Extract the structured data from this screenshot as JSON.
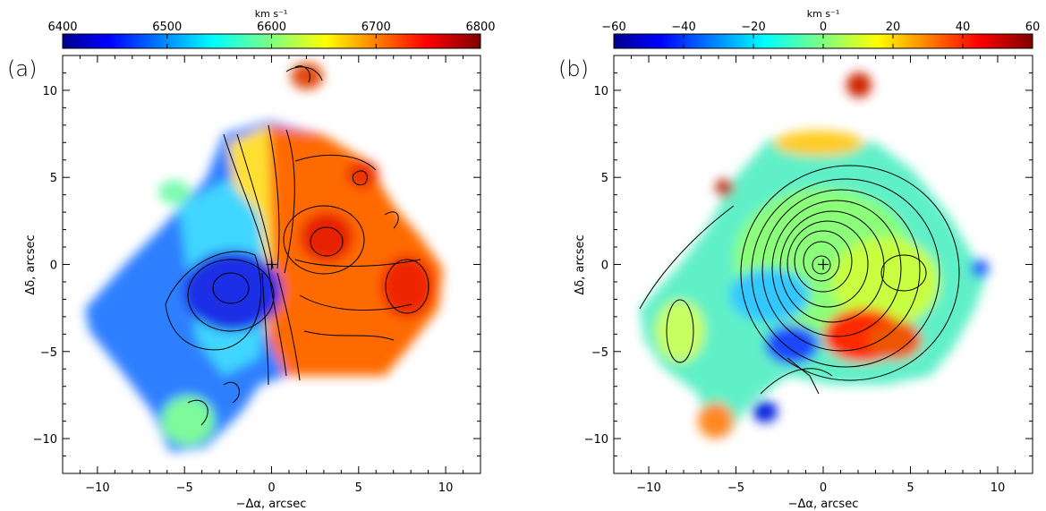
{
  "chart_data": [
    {
      "type": "heatmap",
      "panel_label": "(a)",
      "colorbar": {
        "label": "km s⁻¹",
        "range": [
          6400,
          6800
        ],
        "ticks": [
          "6400",
          "6500",
          "6600",
          "6700",
          "6800"
        ],
        "tick_values": [
          6400,
          6500,
          6600,
          6700,
          6800
        ]
      },
      "xlabel": "−Δα, arcsec",
      "ylabel": "Δδ, arcsec",
      "xlim": [
        -12,
        12
      ],
      "ylim": [
        -12,
        12
      ],
      "x_ticks": [
        "−10",
        "−5",
        "0",
        "5",
        "10"
      ],
      "x_tick_values": [
        -10,
        -5,
        0,
        5,
        10
      ],
      "y_ticks": [
        "−10",
        "−5",
        "0",
        "5",
        "10"
      ],
      "y_tick_values": [
        -10,
        -5,
        0,
        5,
        10
      ],
      "center_marker": [
        0,
        0
      ],
      "features": [
        {
          "name": "blue-minimum",
          "x": -2.5,
          "y": -1.3,
          "value": 6440
        },
        {
          "name": "red-maximum",
          "x": 2.5,
          "y": 1.3,
          "value": 6760
        },
        {
          "name": "red-east",
          "x": 6.5,
          "y": -0.8,
          "value": 6750
        }
      ]
    },
    {
      "type": "heatmap",
      "panel_label": "(b)",
      "colorbar": {
        "label": "km s⁻¹",
        "range": [
          -60,
          60
        ],
        "ticks": [
          "−60",
          "−40",
          "−20",
          "0",
          "20",
          "40",
          "60"
        ],
        "tick_values": [
          -60,
          -40,
          -20,
          0,
          20,
          40,
          60
        ]
      },
      "xlabel": "−Δα, arcsec",
      "ylabel": "Δδ, arcsec",
      "xlim": [
        -12,
        12
      ],
      "ylim": [
        -12,
        12
      ],
      "x_ticks": [
        "−10",
        "−5",
        "0",
        "5",
        "10"
      ],
      "x_tick_values": [
        -10,
        -5,
        0,
        5,
        10
      ],
      "y_ticks": [
        "−10",
        "−5",
        "0",
        "5",
        "10"
      ],
      "y_tick_values": [
        -10,
        -5,
        0,
        5,
        10
      ],
      "center_marker": [
        0,
        0
      ],
      "features": [
        {
          "name": "red-residual",
          "x": 3.0,
          "y": -4.0,
          "value": 55
        },
        {
          "name": "blue-residual",
          "x": -1.5,
          "y": -5.0,
          "value": -50
        }
      ]
    }
  ],
  "colors": {
    "cmap": [
      "#00008f",
      "#0000ff",
      "#00a0ff",
      "#00ffff",
      "#80ff80",
      "#ffff00",
      "#ff8000",
      "#ff0000",
      "#800000"
    ]
  }
}
